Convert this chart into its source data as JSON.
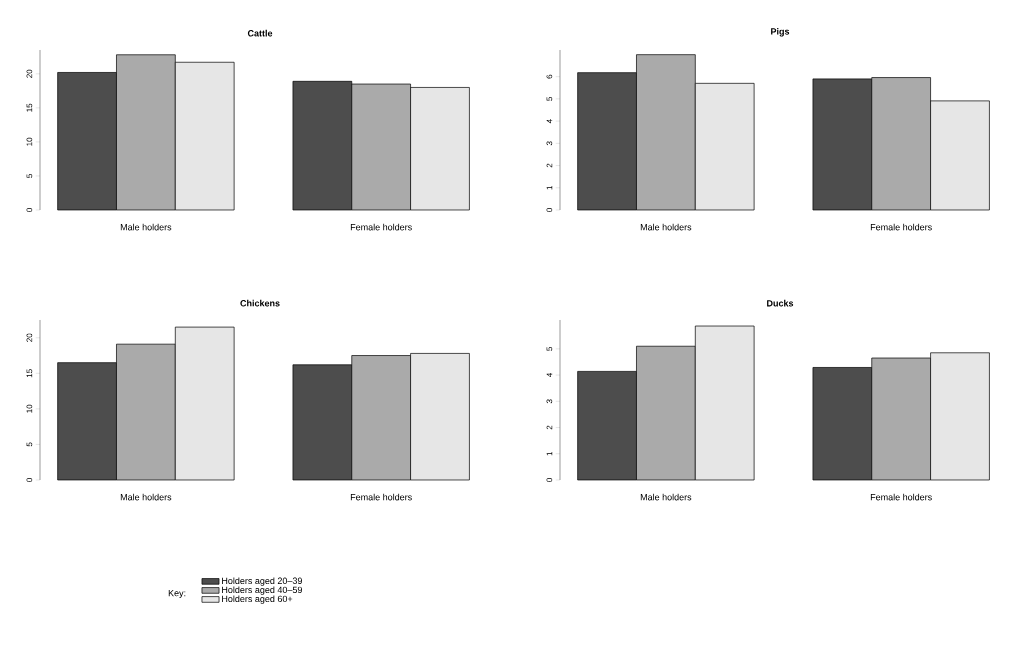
{
  "chart_data": [
    {
      "type": "bar",
      "title": "Cattle",
      "categories": [
        "Male holders",
        "Female holders"
      ],
      "ylim": [
        0,
        23.5
      ],
      "yticks": [
        0,
        5,
        10,
        15,
        20
      ],
      "legend": "bottom",
      "legend_title": "Key:",
      "series": [
        {
          "name": "Holders aged 20–39",
          "color": "#4d4d4d",
          "values": [
            20.2,
            18.9
          ]
        },
        {
          "name": "Holders aged 40–59",
          "color": "#aaaaaa",
          "values": [
            22.8,
            18.5
          ]
        },
        {
          "name": "Holders aged 60+",
          "color": "#e6e6e6",
          "values": [
            21.7,
            18.0
          ]
        }
      ]
    },
    {
      "type": "bar",
      "title": "Pigs",
      "categories": [
        "Male holders",
        "Female holders"
      ],
      "ylim": [
        0,
        7.2
      ],
      "yticks": [
        0,
        1,
        2,
        3,
        4,
        5,
        6
      ],
      "series": [
        {
          "color": "#4d4d4d",
          "values": [
            6.18,
            5.9
          ]
        },
        {
          "color": "#aaaaaa",
          "values": [
            6.99,
            5.96
          ]
        },
        {
          "color": "#e6e6e6",
          "values": [
            5.7,
            4.91
          ]
        }
      ]
    },
    {
      "type": "bar",
      "title": "Chickens",
      "categories": [
        "Male holders",
        "Female holders"
      ],
      "ylim": [
        0,
        22.5
      ],
      "yticks": [
        0,
        5,
        10,
        15,
        20
      ],
      "series": [
        {
          "color": "#4d4d4d",
          "values": [
            16.5,
            16.2
          ]
        },
        {
          "color": "#aaaaaa",
          "values": [
            19.1,
            17.5
          ]
        },
        {
          "color": "#e6e6e6",
          "values": [
            21.5,
            17.8
          ]
        }
      ]
    },
    {
      "type": "bar",
      "title": "Ducks",
      "categories": [
        "Male holders",
        "Female holders"
      ],
      "ylim": [
        0,
        6.1
      ],
      "yticks": [
        0,
        1,
        2,
        3,
        4,
        5
      ],
      "series": [
        {
          "color": "#4d4d4d",
          "values": [
            4.14,
            4.29
          ]
        },
        {
          "color": "#aaaaaa",
          "values": [
            5.1,
            4.65
          ]
        },
        {
          "color": "#e6e6e6",
          "values": [
            5.87,
            4.85
          ]
        }
      ]
    }
  ]
}
